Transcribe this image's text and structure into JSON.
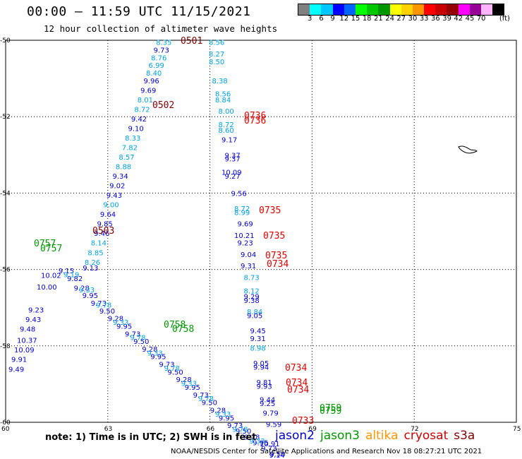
{
  "title": "00:00 – 11:59 UTC 11/15/2021",
  "subtitle": "12 hour collection of altimeter wave heights",
  "legend": {
    "unit": "(ft)",
    "ticks": [
      "3",
      "6",
      "9",
      "12",
      "15",
      "18",
      "21",
      "24",
      "27",
      "30",
      "33",
      "36",
      "39",
      "42",
      "45",
      "70"
    ],
    "colors": [
      "#808080",
      "#00ffff",
      "#00c8ff",
      "#0000ff",
      "#0064ff",
      "#00ff00",
      "#00c800",
      "#009600",
      "#ffff00",
      "#ffd200",
      "#ff9600",
      "#ff0000",
      "#c80000",
      "#960000",
      "#ff00ff",
      "#960096",
      "#ffb4ff",
      "#000000"
    ]
  },
  "axes": {
    "x_ticks": [
      "60",
      "63",
      "66",
      "69",
      "72",
      "75"
    ],
    "y_ticks": [
      "-50",
      "-52",
      "-54",
      "-56",
      "-58",
      "-60"
    ]
  },
  "note": "note: 1) Time is in UTC; 2) SWH is in feet",
  "satellites": [
    {
      "name": "jason2",
      "color": "#0000cc"
    },
    {
      "name": "jason3",
      "color": "#009600"
    },
    {
      "name": "altika",
      "color": "#ff9600"
    },
    {
      "name": "cryosat",
      "color": "#cc0000"
    },
    {
      "name": "s3a",
      "color": "#800000"
    }
  ],
  "footer": "NOAA/NESDIS Center for Satellite Applications and Research   Nov 18 08:27:21 UTC 2021",
  "pass_labels": [
    {
      "text": "0501",
      "lon": 65.2,
      "lat": -50.05,
      "color": "#800000"
    },
    {
      "text": "0502",
      "lon": 61.3,
      "lat": -51.9,
      "color": "#800000"
    },
    {
      "text": "0503",
      "lon": 60.45,
      "lat": -55.1,
      "color": "#800000"
    },
    {
      "text": "0736",
      "lon": 67.4,
      "lat": -52.2,
      "color": "#e00000"
    },
    {
      "text": "0736",
      "lon": 67.4,
      "lat": -52.4,
      "color": "#e00000"
    },
    {
      "text": "0735",
      "lon": 67.8,
      "lat": -54.9,
      "color": "#e00000"
    },
    {
      "text": "0735",
      "lon": 68.0,
      "lat": -55.7,
      "color": "#e00000"
    },
    {
      "text": "0735",
      "lon": 67.95,
      "lat": -56.25,
      "color": "#e00000"
    },
    {
      "text": "0734",
      "lon": 67.95,
      "lat": -56.5,
      "color": "#e00000"
    },
    {
      "text": "0734",
      "lon": 68.25,
      "lat": -58.85,
      "color": "#e00000"
    },
    {
      "text": "0734",
      "lon": 68.25,
      "lat": -59.5,
      "color": "#e00000"
    },
    {
      "text": "0734",
      "lon": 68.25,
      "lat": -59.8,
      "color": "#e00000"
    },
    {
      "text": "0733",
      "lon": 68.8,
      "lat": -60.0,
      "color": "#e00000"
    },
    {
      "text": "0757",
      "lon": 59.85,
      "lat": -55.8,
      "color": "#009600"
    },
    {
      "text": "0757",
      "lon": 60.0,
      "lat": -55.95,
      "color": "#009600"
    },
    {
      "text": "0758",
      "lon": 64.6,
      "lat": -57.6,
      "color": "#009600"
    },
    {
      "text": "0758",
      "lon": 64.8,
      "lat": -57.75,
      "color": "#009600"
    },
    {
      "text": "0759",
      "lon": 69.2,
      "lat": -59.6,
      "color": "#009600"
    },
    {
      "text": "0759",
      "lon": 69.2,
      "lat": -59.7,
      "color": "#009600"
    }
  ],
  "points": [
    {
      "v": "8.35",
      "lon": 61.4,
      "lat": -50.05,
      "c": "#00a0e0"
    },
    {
      "v": "9.73",
      "lon": 61.3,
      "lat": -50.25,
      "c": "#0000cc"
    },
    {
      "v": "8.76",
      "lon": 61.2,
      "lat": -50.45,
      "c": "#00a0e0"
    },
    {
      "v": "6.99",
      "lon": 61.1,
      "lat": -50.65,
      "c": "#00a0e0"
    },
    {
      "v": "8.40",
      "lon": 61.0,
      "lat": -50.85,
      "c": "#00a0e0"
    },
    {
      "v": "9.96",
      "lon": 60.9,
      "lat": -51.05,
      "c": "#0000cc"
    },
    {
      "v": "9.69",
      "lon": 60.8,
      "lat": -51.3,
      "c": "#0000cc"
    },
    {
      "v": "8.01",
      "lon": 60.7,
      "lat": -51.55,
      "c": "#00a0e0"
    },
    {
      "v": "8.72",
      "lon": 60.6,
      "lat": -51.8,
      "c": "#00a0e0"
    },
    {
      "v": "9.42",
      "lon": 60.5,
      "lat": -52.05,
      "c": "#0000cc"
    },
    {
      "v": "9.10",
      "lon": 60.4,
      "lat": -52.3,
      "c": "#0000cc"
    },
    {
      "v": "8.33",
      "lon": 60.3,
      "lat": -52.55,
      "c": "#00a0e0"
    },
    {
      "v": "7.82",
      "lon": 60.2,
      "lat": -52.8,
      "c": "#00a0e0"
    },
    {
      "v": "8.57",
      "lon": 60.1,
      "lat": -53.05,
      "c": "#00a0e0"
    },
    {
      "v": "8.88",
      "lon": 60.0,
      "lat": -53.3,
      "c": "#00a0e0"
    },
    {
      "v": "9.34",
      "lon": 59.9,
      "lat": -53.55,
      "c": "#0000cc"
    },
    {
      "v": "9.02",
      "lon": 59.8,
      "lat": -53.8,
      "c": "#0000cc"
    },
    {
      "v": "9.43",
      "lon": 59.7,
      "lat": -54.05,
      "c": "#0000cc"
    },
    {
      "v": "9.00",
      "lon": 59.6,
      "lat": -54.3,
      "c": "#00a0e0"
    },
    {
      "v": "9.64",
      "lon": 59.5,
      "lat": -54.55,
      "c": "#0000cc"
    },
    {
      "v": "9.85",
      "lon": 59.4,
      "lat": -54.8,
      "c": "#0000cc"
    },
    {
      "v": "9.46",
      "lon": 59.3,
      "lat": -55.05,
      "c": "#0000cc"
    },
    {
      "v": "8.14",
      "lon": 59.2,
      "lat": -55.3,
      "c": "#00a0e0"
    },
    {
      "v": "8.85",
      "lon": 59.1,
      "lat": -55.55,
      "c": "#00a0e0"
    },
    {
      "v": "8.26",
      "lon": 59.0,
      "lat": -55.8,
      "c": "#00a0e0"
    },
    {
      "v": "9.13",
      "lon": 58.6,
      "lat": -55.95,
      "c": "#0000cc"
    },
    {
      "v": "10.02",
      "lon": 59.75,
      "lat": -56.15,
      "c": "#0000cc"
    },
    {
      "v": "10.00",
      "lon": 59.6,
      "lat": -56.45,
      "c": "#0000cc"
    },
    {
      "v": "9.23",
      "lon": 59.3,
      "lat": -57.05,
      "c": "#0000cc"
    },
    {
      "v": "9.43",
      "lon": 59.2,
      "lat": -57.3,
      "c": "#0000cc"
    },
    {
      "v": "9.48",
      "lon": 59.0,
      "lat": -57.55,
      "c": "#0000cc"
    },
    {
      "v": "10.37",
      "lon": 58.9,
      "lat": -57.85,
      "c": "#0000cc"
    },
    {
      "v": "10.09",
      "lon": 58.8,
      "lat": -58.1,
      "c": "#0000cc"
    },
    {
      "v": "9.91",
      "lon": 58.7,
      "lat": -58.35,
      "c": "#0000cc"
    },
    {
      "v": "9.49",
      "lon": 58.6,
      "lat": -58.6,
      "c": "#0000cc"
    },
    {
      "v": "8.56",
      "lon": 63.6,
      "lat": -50.05,
      "c": "#00a0e0"
    },
    {
      "v": "8.27",
      "lon": 63.6,
      "lat": -50.35,
      "c": "#00a0e0"
    },
    {
      "v": "8.50",
      "lon": 63.6,
      "lat": -50.55,
      "c": "#00a0e0"
    },
    {
      "v": "8.38",
      "lon": 63.65,
      "lat": -51.05,
      "c": "#00a0e0"
    },
    {
      "v": "8.56",
      "lon": 63.7,
      "lat": -51.4,
      "c": "#00a0e0"
    },
    {
      "v": "8.84",
      "lon": 63.7,
      "lat": -51.55,
      "c": "#00a0e0"
    },
    {
      "v": "8.00",
      "lon": 63.75,
      "lat": -51.85,
      "c": "#00a0e0"
    },
    {
      "v": "8.72",
      "lon": 63.75,
      "lat": -52.2,
      "c": "#00a0e0"
    },
    {
      "v": "8.60",
      "lon": 63.75,
      "lat": -52.35,
      "c": "#00a0e0"
    },
    {
      "v": "9.17",
      "lon": 63.8,
      "lat": -52.6,
      "c": "#0000cc"
    },
    {
      "v": "9.37",
      "lon": 63.85,
      "lat": -53.0,
      "c": "#0000cc"
    },
    {
      "v": "9.37",
      "lon": 63.85,
      "lat": -53.1,
      "c": "#0000cc"
    },
    {
      "v": "10.09",
      "lon": 63.8,
      "lat": -53.45,
      "c": "#0000cc"
    },
    {
      "v": "9.27",
      "lon": 63.85,
      "lat": -53.55,
      "c": "#0000cc"
    },
    {
      "v": "9.56",
      "lon": 63.95,
      "lat": -54.0,
      "c": "#0000cc"
    },
    {
      "v": "8.72",
      "lon": 64.0,
      "lat": -54.4,
      "c": "#00a0e0"
    },
    {
      "v": "8.99",
      "lon": 64.0,
      "lat": -54.5,
      "c": "#00a0e0"
    },
    {
      "v": "9.69",
      "lon": 64.05,
      "lat": -54.8,
      "c": "#0000cc"
    },
    {
      "v": "10.21",
      "lon": 64.0,
      "lat": -55.1,
      "c": "#0000cc"
    },
    {
      "v": "9.23",
      "lon": 64.05,
      "lat": -55.3,
      "c": "#0000cc"
    },
    {
      "v": "9.04",
      "lon": 64.1,
      "lat": -55.6,
      "c": "#0000cc"
    },
    {
      "v": "9.31",
      "lon": 64.1,
      "lat": -55.9,
      "c": "#0000cc"
    },
    {
      "v": "8.73",
      "lon": 64.15,
      "lat": -56.2,
      "c": "#00a0e0"
    },
    {
      "v": "8.12",
      "lon": 64.15,
      "lat": -56.55,
      "c": "#00a0e0"
    },
    {
      "v": "9.29",
      "lon": 64.15,
      "lat": -56.7,
      "c": "#0000cc"
    },
    {
      "v": "9.38",
      "lon": 64.15,
      "lat": -56.8,
      "c": "#0000cc"
    },
    {
      "v": "8.84",
      "lon": 64.2,
      "lat": -57.1,
      "c": "#00a0e0"
    },
    {
      "v": "9.05",
      "lon": 64.2,
      "lat": -57.2,
      "c": "#0000cc"
    },
    {
      "v": "9.45",
      "lon": 64.25,
      "lat": -57.6,
      "c": "#0000cc"
    },
    {
      "v": "9.31",
      "lon": 64.25,
      "lat": -57.8,
      "c": "#0000cc"
    },
    {
      "v": "8.98",
      "lon": 64.25,
      "lat": -58.05,
      "c": "#00a0e0"
    },
    {
      "v": "9.05",
      "lon": 64.3,
      "lat": -58.45,
      "c": "#0000cc"
    },
    {
      "v": "9.94",
      "lon": 64.3,
      "lat": -58.55,
      "c": "#0000cc"
    },
    {
      "v": "9.81",
      "lon": 64.35,
      "lat": -58.95,
      "c": "#0000cc"
    },
    {
      "v": "9.93",
      "lon": 64.35,
      "lat": -59.05,
      "c": "#0000cc"
    },
    {
      "v": "9.44",
      "lon": 64.4,
      "lat": -59.4,
      "c": "#0000cc"
    },
    {
      "v": "9.25",
      "lon": 64.4,
      "lat": -59.5,
      "c": "#0000cc"
    },
    {
      "v": "9.79",
      "lon": 64.45,
      "lat": -59.75,
      "c": "#0000cc"
    },
    {
      "v": "9.59",
      "lon": 64.5,
      "lat": -60.05,
      "c": "#0000cc"
    },
    {
      "v": "10.91",
      "lon": 64.4,
      "lat": -60.55,
      "c": "#0000cc"
    },
    {
      "v": "9.14",
      "lon": 64.55,
      "lat": -60.85,
      "c": "#0000cc"
    }
  ],
  "diag_points": [
    {
      "lon": 60.15,
      "lat": -56.1,
      "c": "#0000cc"
    },
    {
      "lon": 60.4,
      "lat": -56.3,
      "c": "#0000cc"
    },
    {
      "lon": 60.6,
      "lat": -56.55,
      "c": "#0000cc"
    },
    {
      "lon": 60.85,
      "lat": -56.75,
      "c": "#0000cc"
    },
    {
      "lon": 61.1,
      "lat": -56.95,
      "c": "#0000cc"
    },
    {
      "lon": 61.35,
      "lat": -57.15,
      "c": "#0000cc"
    },
    {
      "lon": 61.6,
      "lat": -57.35,
      "c": "#0000cc"
    },
    {
      "lon": 61.85,
      "lat": -57.55,
      "c": "#0000cc"
    },
    {
      "lon": 62.1,
      "lat": -57.75,
      "c": "#0000cc"
    },
    {
      "lon": 62.35,
      "lat": -57.95,
      "c": "#0000cc"
    },
    {
      "lon": 62.6,
      "lat": -58.15,
      "c": "#0000cc"
    },
    {
      "lon": 62.85,
      "lat": -58.35,
      "c": "#0000cc"
    },
    {
      "lon": 63.1,
      "lat": -58.55,
      "c": "#0000cc"
    },
    {
      "lon": 63.35,
      "lat": -58.75,
      "c": "#0000cc"
    },
    {
      "lon": 63.6,
      "lat": -58.95,
      "c": "#0000cc"
    },
    {
      "lon": 63.85,
      "lat": -59.15,
      "c": "#0000cc"
    },
    {
      "lon": 64.1,
      "lat": -59.35,
      "c": "#0000cc"
    },
    {
      "lon": 64.35,
      "lat": -59.55,
      "c": "#0000cc"
    },
    {
      "lon": 64.6,
      "lat": -59.75,
      "c": "#0000cc"
    },
    {
      "lon": 64.85,
      "lat": -59.95,
      "c": "#0000cc"
    },
    {
      "lon": 65.1,
      "lat": -60.15,
      "c": "#0000cc"
    },
    {
      "lon": 65.35,
      "lat": -60.3,
      "c": "#0000cc"
    },
    {
      "lon": 65.6,
      "lat": -60.45,
      "c": "#0000cc"
    },
    {
      "lon": 65.85,
      "lat": -60.6,
      "c": "#0000cc"
    },
    {
      "lon": 66.1,
      "lat": -60.75,
      "c": "#0000cc"
    },
    {
      "lon": 66.35,
      "lat": -60.9,
      "c": "#0000cc"
    },
    {
      "lon": 60.3,
      "lat": -56.2,
      "c": "#00a0e0"
    },
    {
      "lon": 60.75,
      "lat": -56.6,
      "c": "#00a0e0"
    },
    {
      "lon": 61.25,
      "lat": -57.0,
      "c": "#00a0e0"
    },
    {
      "lon": 61.75,
      "lat": -57.45,
      "c": "#00a0e0"
    },
    {
      "lon": 62.25,
      "lat": -57.85,
      "c": "#00a0e0"
    },
    {
      "lon": 62.75,
      "lat": -58.25,
      "c": "#00a0e0"
    },
    {
      "lon": 63.25,
      "lat": -58.65,
      "c": "#00a0e0"
    },
    {
      "lon": 63.75,
      "lat": -59.05,
      "c": "#00a0e0"
    },
    {
      "lon": 64.25,
      "lat": -59.45,
      "c": "#00a0e0"
    },
    {
      "lon": 64.75,
      "lat": -59.85,
      "c": "#00a0e0"
    },
    {
      "lon": 65.25,
      "lat": -60.25,
      "c": "#00a0e0"
    },
    {
      "lon": 65.75,
      "lat": -60.55,
      "c": "#00a0e0"
    }
  ]
}
